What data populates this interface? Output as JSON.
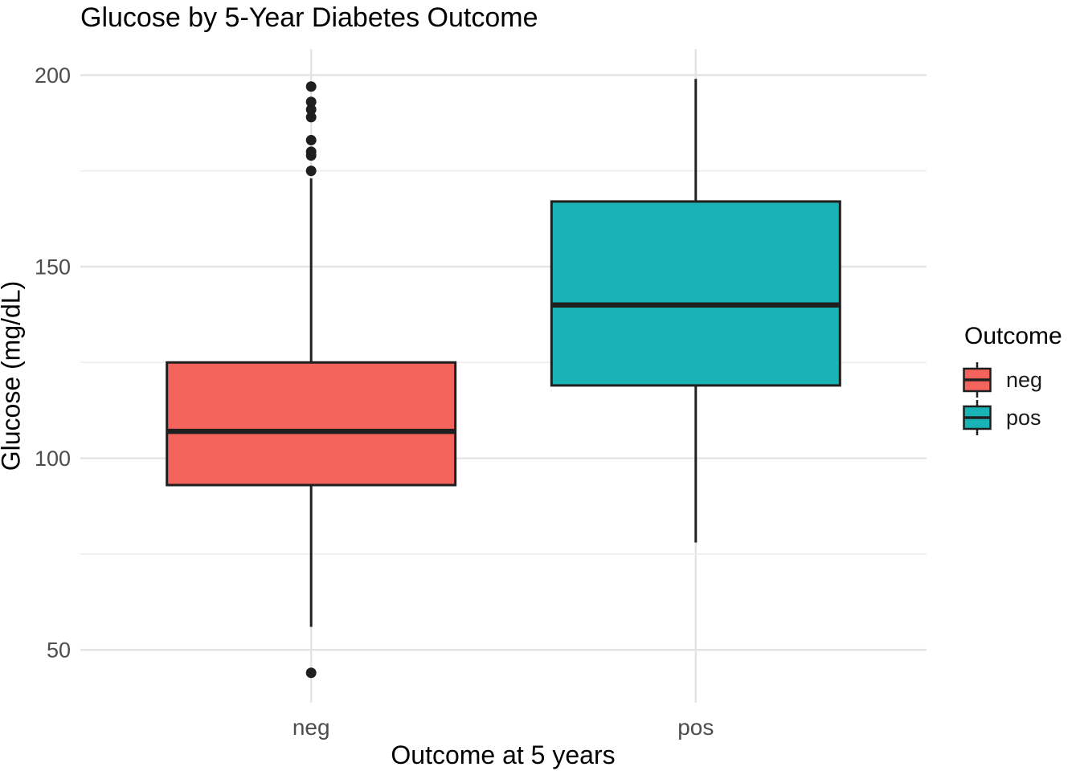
{
  "chart_data": {
    "type": "boxplot",
    "title": "Glucose by 5-Year Diabetes Outcome",
    "xlabel": "Outcome at 5 years",
    "ylabel": "Glucose (mg/dL)",
    "legend": {
      "title": "Outcome",
      "position": "right",
      "items": [
        {
          "label": "neg"
        },
        {
          "label": "pos"
        }
      ]
    },
    "categories": [
      "neg",
      "pos"
    ],
    "series": [
      {
        "name": "neg",
        "fill": "#F4635C",
        "stats": {
          "whisker_low": 56,
          "q1": 93,
          "median": 107,
          "q3": 125,
          "whisker_high": 173
        },
        "outliers": [
          197,
          193,
          191,
          189,
          183,
          180,
          179,
          175,
          44
        ]
      },
      {
        "name": "pos",
        "fill": "#1AB3B5",
        "stats": {
          "whisker_low": 78,
          "q1": 119,
          "median": 140,
          "q3": 167,
          "whisker_high": 199
        },
        "outliers": []
      }
    ],
    "y_axis": {
      "ticks": [
        50,
        100,
        150,
        200
      ],
      "minor_ticks": [
        75,
        125,
        175
      ],
      "range": [
        36.2,
        206.8
      ]
    },
    "grid": true,
    "colors": {
      "box_outline": "#1F1F1F",
      "median_line": "#1F1F1F",
      "outlier_point": "#1F1F1F",
      "grid_major": "#E4E4E4",
      "grid_minor": "#EDEDED",
      "tick_text": "#4D4D4D",
      "title_text": "#000000",
      "background": "#FFFFFF"
    }
  }
}
